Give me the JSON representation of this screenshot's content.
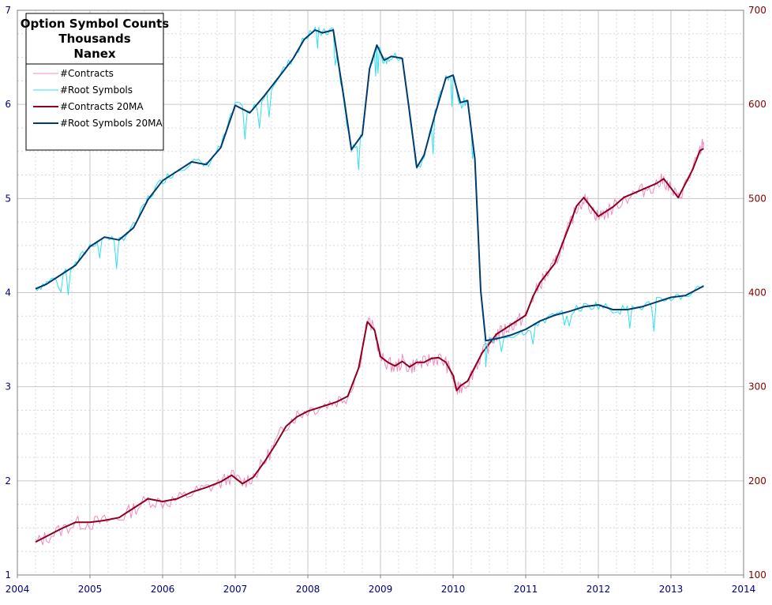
{
  "chart_data": {
    "type": "line",
    "title_lines": [
      "Option Symbol Counts",
      "Thousands",
      "Nanex"
    ],
    "legend_placement": "top-left",
    "grid": true,
    "xlim": [
      2004,
      2014
    ],
    "x_ticks": [
      "2004",
      "2005",
      "2006",
      "2007",
      "2008",
      "2009",
      "2010",
      "2011",
      "2012",
      "2013",
      "2014"
    ],
    "y_left": {
      "lim": [
        1,
        7
      ],
      "ticks": [
        "1",
        "2",
        "3",
        "4",
        "5",
        "6",
        "7"
      ],
      "color": "#000080"
    },
    "y_right": {
      "lim": [
        100,
        700
      ],
      "ticks": [
        "100",
        "200",
        "300",
        "400",
        "500",
        "600",
        "700"
      ],
      "color": "#800000"
    },
    "series": [
      {
        "name": "#Contracts",
        "axis": "right",
        "color": "#f08cc0",
        "width": 1,
        "noisy": true,
        "x": [
          2004.25,
          2004.4,
          2004.6,
          2004.8,
          2005.0,
          2005.2,
          2005.4,
          2005.6,
          2005.8,
          2006.0,
          2006.2,
          2006.4,
          2006.6,
          2006.8,
          2006.95,
          2007.1,
          2007.25,
          2007.4,
          2007.55,
          2007.7,
          2007.85,
          2008.0,
          2008.2,
          2008.4,
          2008.55,
          2008.7,
          2008.82,
          2008.92,
          2009.0,
          2009.1,
          2009.2,
          2009.3,
          2009.4,
          2009.5,
          2009.6,
          2009.7,
          2009.8,
          2009.9,
          2010.0,
          2010.05,
          2010.1,
          2010.2,
          2010.3,
          2010.4,
          2010.5,
          2010.6,
          2010.7,
          2010.8,
          2010.9,
          2011.0,
          2011.1,
          2011.2,
          2011.3,
          2011.4,
          2011.5,
          2011.6,
          2011.7,
          2011.8,
          2011.9,
          2012.0,
          2012.1,
          2012.2,
          2012.35,
          2012.5,
          2012.65,
          2012.8,
          2012.9,
          2013.0,
          2013.1,
          2013.2,
          2013.3,
          2013.4,
          2013.45
        ],
        "y": [
          134,
          140,
          148,
          155,
          155,
          157,
          160,
          170,
          180,
          177,
          180,
          187,
          192,
          198,
          205,
          198,
          205,
          220,
          240,
          260,
          270,
          275,
          280,
          285,
          290,
          320,
          370,
          360,
          330,
          325,
          320,
          327,
          320,
          325,
          325,
          330,
          330,
          325,
          310,
          295,
          300,
          305,
          320,
          335,
          345,
          355,
          360,
          365,
          370,
          375,
          395,
          410,
          420,
          430,
          450,
          470,
          490,
          500,
          490,
          480,
          485,
          490,
          500,
          505,
          510,
          515,
          520,
          510,
          500,
          515,
          530,
          550,
          560
        ]
      },
      {
        "name": "#Root Symbols",
        "axis": "left",
        "color": "#2ee0ee",
        "width": 1,
        "noisy": true,
        "x": [
          2004.25,
          2004.4,
          2004.6,
          2004.8,
          2005.0,
          2005.2,
          2005.4,
          2005.6,
          2005.8,
          2006.0,
          2006.2,
          2006.4,
          2006.6,
          2006.8,
          2007.0,
          2007.2,
          2007.4,
          2007.6,
          2007.8,
          2007.95,
          2008.1,
          2008.2,
          2008.35,
          2008.5,
          2008.6,
          2008.75,
          2008.85,
          2008.95,
          2009.05,
          2009.15,
          2009.3,
          2009.4,
          2009.5,
          2009.6,
          2009.75,
          2009.9,
          2010.0,
          2010.1,
          2010.2,
          2010.3,
          2010.38,
          2010.45,
          2010.6,
          2010.8,
          2011.0,
          2011.2,
          2011.4,
          2011.6,
          2011.8,
          2012.0,
          2012.2,
          2012.4,
          2012.6,
          2012.8,
          2013.0,
          2013.2,
          2013.45
        ],
        "y": [
          4.05,
          4.1,
          4.2,
          4.3,
          4.5,
          4.6,
          4.55,
          4.7,
          5.0,
          5.2,
          5.3,
          5.4,
          5.35,
          5.55,
          6.0,
          5.9,
          6.1,
          6.3,
          6.5,
          6.7,
          6.8,
          6.75,
          6.8,
          6.0,
          5.5,
          5.7,
          6.4,
          6.65,
          6.45,
          6.5,
          6.5,
          5.9,
          5.3,
          5.45,
          5.9,
          6.3,
          6.3,
          6.0,
          6.05,
          5.4,
          4.0,
          3.48,
          3.5,
          3.55,
          3.6,
          3.7,
          3.75,
          3.8,
          3.85,
          3.87,
          3.82,
          3.82,
          3.85,
          3.9,
          3.95,
          3.97,
          4.08
        ]
      },
      {
        "name": "#Contracts 20MA",
        "axis": "right",
        "color": "#8c0020",
        "width": 2,
        "noisy": false,
        "x": [
          2004.25,
          2004.4,
          2004.6,
          2004.8,
          2005.0,
          2005.2,
          2005.4,
          2005.6,
          2005.8,
          2006.0,
          2006.2,
          2006.4,
          2006.6,
          2006.8,
          2006.95,
          2007.1,
          2007.25,
          2007.4,
          2007.55,
          2007.7,
          2007.85,
          2008.0,
          2008.2,
          2008.4,
          2008.55,
          2008.7,
          2008.82,
          2008.92,
          2009.0,
          2009.1,
          2009.2,
          2009.3,
          2009.4,
          2009.5,
          2009.6,
          2009.7,
          2009.8,
          2009.9,
          2010.0,
          2010.05,
          2010.1,
          2010.2,
          2010.3,
          2010.4,
          2010.5,
          2010.6,
          2010.7,
          2010.8,
          2010.9,
          2011.0,
          2011.1,
          2011.2,
          2011.3,
          2011.4,
          2011.5,
          2011.6,
          2011.7,
          2011.8,
          2011.9,
          2012.0,
          2012.1,
          2012.2,
          2012.35,
          2012.5,
          2012.65,
          2012.8,
          2012.9,
          2013.0,
          2013.1,
          2013.2,
          2013.3,
          2013.4,
          2013.45
        ],
        "y": [
          135,
          141,
          149,
          156,
          156,
          158,
          161,
          171,
          181,
          178,
          181,
          188,
          193,
          199,
          206,
          197,
          204,
          220,
          238,
          258,
          268,
          274,
          279,
          284,
          290,
          320,
          369,
          360,
          332,
          326,
          322,
          327,
          321,
          326,
          326,
          330,
          331,
          326,
          312,
          296,
          301,
          306,
          321,
          336,
          346,
          356,
          361,
          366,
          371,
          376,
          396,
          411,
          421,
          431,
          451,
          471,
          492,
          501,
          491,
          481,
          486,
          491,
          501,
          506,
          511,
          516,
          521,
          511,
          501,
          516,
          531,
          551,
          553
        ]
      },
      {
        "name": "#Root Symbols 20MA",
        "axis": "left",
        "color": "#003a6e",
        "width": 2,
        "noisy": false,
        "x": [
          2004.25,
          2004.4,
          2004.6,
          2004.8,
          2005.0,
          2005.2,
          2005.4,
          2005.6,
          2005.8,
          2006.0,
          2006.2,
          2006.4,
          2006.6,
          2006.8,
          2007.0,
          2007.2,
          2007.4,
          2007.6,
          2007.8,
          2007.95,
          2008.1,
          2008.2,
          2008.35,
          2008.5,
          2008.6,
          2008.75,
          2008.85,
          2008.95,
          2009.05,
          2009.15,
          2009.3,
          2009.4,
          2009.5,
          2009.6,
          2009.75,
          2009.9,
          2010.0,
          2010.1,
          2010.2,
          2010.3,
          2010.38,
          2010.45,
          2010.6,
          2010.8,
          2011.0,
          2011.2,
          2011.4,
          2011.6,
          2011.8,
          2012.0,
          2012.2,
          2012.4,
          2012.6,
          2012.8,
          2013.0,
          2013.2,
          2013.45
        ],
        "y": [
          4.04,
          4.09,
          4.19,
          4.29,
          4.49,
          4.59,
          4.56,
          4.69,
          4.99,
          5.19,
          5.29,
          5.39,
          5.36,
          5.54,
          5.99,
          5.91,
          6.09,
          6.29,
          6.49,
          6.69,
          6.79,
          6.76,
          6.79,
          6.05,
          5.52,
          5.68,
          6.38,
          6.63,
          6.47,
          6.51,
          6.49,
          5.92,
          5.33,
          5.46,
          5.89,
          6.28,
          6.31,
          6.02,
          6.04,
          5.42,
          4.02,
          3.49,
          3.51,
          3.55,
          3.61,
          3.7,
          3.76,
          3.8,
          3.85,
          3.87,
          3.82,
          3.82,
          3.85,
          3.9,
          3.95,
          3.97,
          4.07
        ]
      }
    ]
  }
}
